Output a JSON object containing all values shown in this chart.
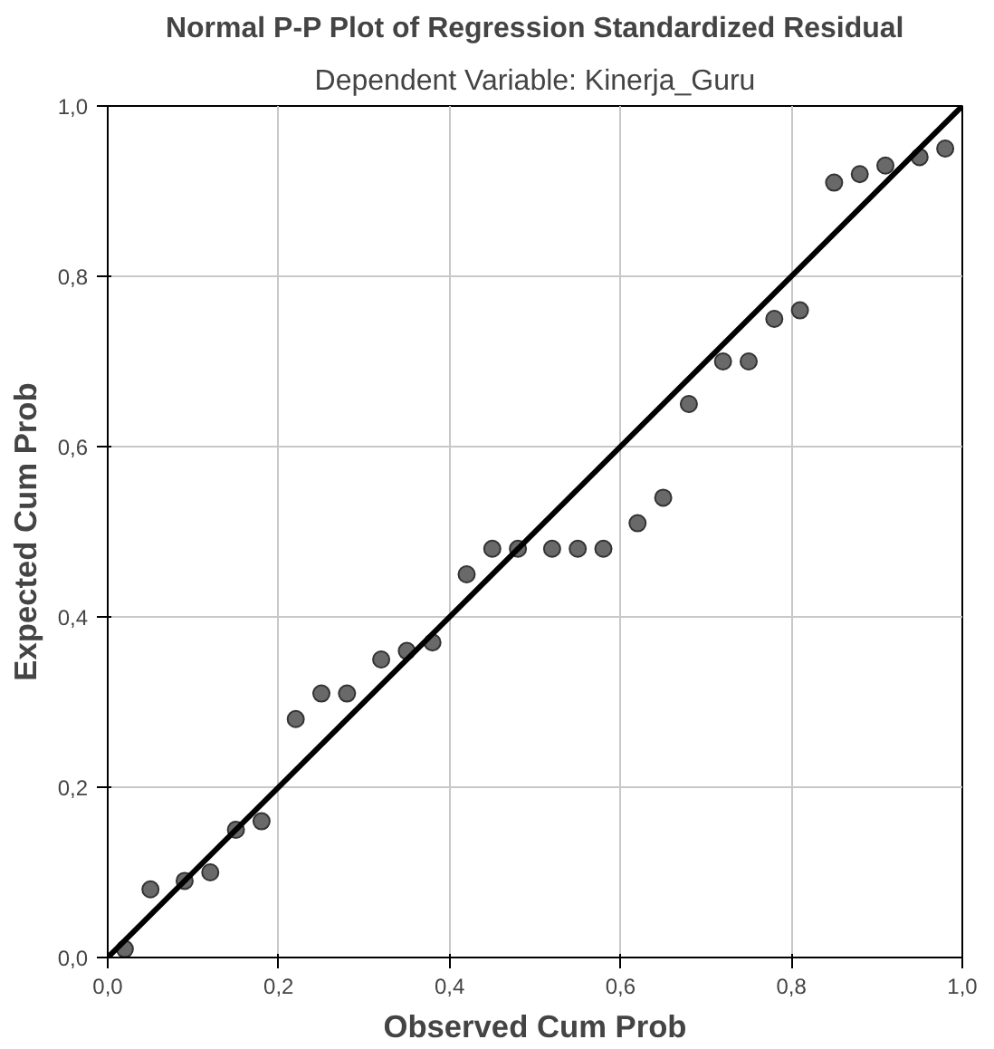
{
  "chart_data": {
    "type": "scatter",
    "title": "Normal P-P Plot of Regression Standardized Residual",
    "subtitle": "Dependent Variable: Kinerja_Guru",
    "xlabel": "Observed Cum Prob",
    "ylabel": "Expected Cum Prob",
    "xlim": [
      0,
      1
    ],
    "ylim": [
      0,
      1
    ],
    "xticks": [
      {
        "value": 0,
        "label": "0,0"
      },
      {
        "value": 0.2,
        "label": "0,2"
      },
      {
        "value": 0.4,
        "label": "0,4"
      },
      {
        "value": 0.6,
        "label": "0,6"
      },
      {
        "value": 0.8,
        "label": "0,8"
      },
      {
        "value": 1,
        "label": "1,0"
      }
    ],
    "yticks": [
      {
        "value": 0,
        "label": "0,0"
      },
      {
        "value": 0.2,
        "label": "0,2"
      },
      {
        "value": 0.4,
        "label": "0,4"
      },
      {
        "value": 0.6,
        "label": "0,6"
      },
      {
        "value": 0.8,
        "label": "0,8"
      },
      {
        "value": 1,
        "label": "1,0"
      }
    ],
    "grid": true,
    "series": [
      {
        "marker": "circle",
        "color": "#696969",
        "x": [
          0.02,
          0.05,
          0.09,
          0.12,
          0.15,
          0.18,
          0.22,
          0.25,
          0.28,
          0.32,
          0.35,
          0.38,
          0.42,
          0.45,
          0.48,
          0.52,
          0.55,
          0.58,
          0.62,
          0.65,
          0.68,
          0.72,
          0.75,
          0.78,
          0.81,
          0.85,
          0.88,
          0.91,
          0.95,
          0.98
        ],
        "values": [
          0.01,
          0.08,
          0.09,
          0.1,
          0.15,
          0.16,
          0.28,
          0.31,
          0.31,
          0.35,
          0.36,
          0.37,
          0.45,
          0.48,
          0.48,
          0.48,
          0.48,
          0.48,
          0.51,
          0.54,
          0.65,
          0.7,
          0.7,
          0.75,
          0.76,
          0.91,
          0.92,
          0.93,
          0.94,
          0.95
        ]
      },
      {
        "type": "line",
        "marker": "none",
        "color": "#000000",
        "x": [
          0,
          1
        ],
        "values": [
          0,
          1
        ]
      }
    ]
  }
}
